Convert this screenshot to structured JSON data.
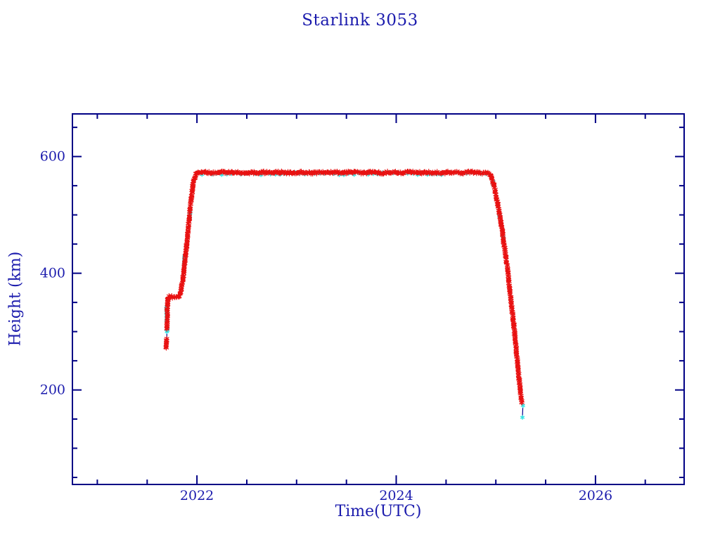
{
  "page": {
    "background": "#ffffff"
  },
  "chart_data": {
    "type": "scatter",
    "title": "Starlink 3053",
    "xlabel": "Time(UTC)",
    "ylabel": "Height (km)",
    "xlim": [
      2020.75,
      2026.89
    ],
    "ylim": [
      38,
      673
    ],
    "x_major_ticks": [
      {
        "value": 2022,
        "label": "2022"
      },
      {
        "value": 2024,
        "label": "2024"
      },
      {
        "value": 2026,
        "label": "2026"
      }
    ],
    "x_minor_step": 0.5,
    "y_major_ticks": [
      {
        "value": 200,
        "label": "200"
      },
      {
        "value": 400,
        "label": "400"
      },
      {
        "value": 600,
        "label": "600"
      }
    ],
    "y_minor_step": 50,
    "grid": false,
    "legend": "none",
    "colors": {
      "axis": "#000085",
      "text": "#1b1bad",
      "line": "#000090",
      "red": "#e81111",
      "cyan": "#35e4e4"
    },
    "series": [
      {
        "name": "height-track-cyan",
        "color": "#35e4e4",
        "marker": "star",
        "size": 2.6,
        "stroke_width": 1.5,
        "segments": [
          {
            "points": [
              [
                2021.698,
                318
              ],
              [
                2021.698,
                343
              ]
            ],
            "step": 1.2,
            "jitter": 0.9
          },
          {
            "points": [
              [
                2021.703,
                300
              ],
              [
                2021.703,
                306
              ]
            ],
            "step": 1.4,
            "jitter": 0.8
          },
          {
            "points": [
              [
                2021.873,
                416
              ],
              [
                2021.879,
                430
              ]
            ],
            "step": 1.3,
            "jitter": 0.9
          },
          {
            "points": [
              [
                2021.925,
                492
              ],
              [
                2021.932,
                504
              ]
            ],
            "step": 1.4,
            "jitter": 0.9
          },
          {
            "points": [
              [
                2022.05,
                570.5
              ],
              [
                2024.9,
                570.5
              ]
            ],
            "step": 7,
            "jitter": 2.0
          },
          {
            "points": [
              [
                2024.972,
                556
              ],
              [
                2024.979,
                550
              ]
            ],
            "step": 1.6,
            "jitter": 0.9
          },
          {
            "points": [
              [
                2025.035,
                500
              ],
              [
                2025.04,
                496
              ]
            ],
            "step": 1.6,
            "jitter": 0.8
          },
          {
            "points": [
              [
                2025.07,
                462
              ],
              [
                2025.075,
                458
              ]
            ],
            "step": 1.6,
            "jitter": 0.8
          },
          {
            "points": [
              [
                2025.272,
                173
              ]
            ],
            "step": 1,
            "jitter": 0
          },
          {
            "points": [
              [
                2025.267,
                153
              ]
            ],
            "step": 1,
            "jitter": 0
          }
        ]
      },
      {
        "name": "height-track-red",
        "color": "#e81111",
        "marker": "asterisk",
        "size": 3.3,
        "stroke_width": 1.15,
        "segments": [
          {
            "points": [
              [
                2021.692,
                271
              ],
              [
                2021.693,
                275
              ],
              [
                2021.695,
                281
              ],
              [
                2021.697,
                288
              ]
            ],
            "step": 1.2,
            "jitter": 1.0
          },
          {
            "points": [
              [
                2021.699,
                303
              ],
              [
                2021.7,
                313
              ],
              [
                2021.701,
                323
              ],
              [
                2021.702,
                333
              ],
              [
                2021.703,
                342
              ],
              [
                2021.705,
                350
              ],
              [
                2021.708,
                356
              ],
              [
                2021.713,
                359
              ],
              [
                2021.72,
                360
              ],
              [
                2021.74,
                360
              ],
              [
                2021.76,
                359
              ],
              [
                2021.78,
                360
              ],
              [
                2021.8,
                360
              ],
              [
                2021.815,
                360
              ],
              [
                2021.825,
                362
              ],
              [
                2021.838,
                370
              ],
              [
                2021.85,
                381
              ],
              [
                2021.863,
                396
              ],
              [
                2021.876,
                414
              ],
              [
                2021.889,
                435
              ],
              [
                2021.902,
                458
              ],
              [
                2021.915,
                481
              ],
              [
                2021.928,
                503
              ],
              [
                2021.94,
                523
              ],
              [
                2021.951,
                540
              ],
              [
                2021.962,
                553
              ],
              [
                2021.973,
                562
              ],
              [
                2021.985,
                568
              ],
              [
                2022.0,
                572
              ],
              [
                2022.05,
                573
              ],
              [
                2022.15,
                572
              ],
              [
                2022.25,
                573
              ],
              [
                2022.35,
                572
              ],
              [
                2022.45,
                573
              ],
              [
                2022.55,
                572
              ],
              [
                2022.65,
                573
              ],
              [
                2022.75,
                572
              ],
              [
                2022.85,
                573
              ],
              [
                2022.95,
                572
              ],
              [
                2023.05,
                573
              ],
              [
                2023.15,
                572
              ],
              [
                2023.25,
                572
              ],
              [
                2023.35,
                573
              ],
              [
                2023.45,
                572
              ],
              [
                2023.55,
                573
              ],
              [
                2023.65,
                572
              ],
              [
                2023.75,
                573
              ],
              [
                2023.85,
                572
              ],
              [
                2023.95,
                573
              ],
              [
                2024.05,
                572
              ],
              [
                2024.15,
                573
              ],
              [
                2024.25,
                572
              ],
              [
                2024.35,
                573
              ],
              [
                2024.45,
                572
              ],
              [
                2024.55,
                573
              ],
              [
                2024.65,
                572
              ],
              [
                2024.75,
                573
              ],
              [
                2024.85,
                572
              ],
              [
                2024.93,
                571
              ],
              [
                2024.951,
                568
              ],
              [
                2024.965,
                560
              ],
              [
                2024.98,
                551
              ],
              [
                2024.995,
                540
              ],
              [
                2025.01,
                527
              ],
              [
                2025.03,
                509
              ],
              [
                2025.05,
                490
              ],
              [
                2025.065,
                471
              ],
              [
                2025.08,
                452
              ],
              [
                2025.095,
                436
              ],
              [
                2025.11,
                417
              ],
              [
                2025.122,
                400
              ],
              [
                2025.133,
                384
              ],
              [
                2025.144,
                366
              ],
              [
                2025.155,
                349
              ],
              [
                2025.167,
                331
              ],
              [
                2025.179,
                313
              ],
              [
                2025.19,
                294
              ],
              [
                2025.202,
                274
              ],
              [
                2025.214,
                253
              ],
              [
                2025.226,
                232
              ],
              [
                2025.238,
                211
              ],
              [
                2025.248,
                196
              ],
              [
                2025.256,
                185
              ],
              [
                2025.262,
                178
              ]
            ],
            "step": 1.35,
            "jitter": 1.6
          }
        ]
      }
    ],
    "connect_line": [
      [
        2021.692,
        271
      ],
      [
        2021.697,
        288
      ],
      [
        2021.699,
        303
      ],
      [
        2021.705,
        350
      ],
      [
        2021.713,
        359
      ],
      [
        2021.8,
        360
      ],
      [
        2021.825,
        362
      ],
      [
        2021.85,
        381
      ],
      [
        2021.889,
        435
      ],
      [
        2021.93,
        506
      ],
      [
        2021.962,
        553
      ],
      [
        2022.0,
        572
      ],
      [
        2024.93,
        572
      ],
      [
        2024.951,
        568
      ],
      [
        2024.98,
        551
      ],
      [
        2025.01,
        527
      ],
      [
        2025.05,
        490
      ],
      [
        2025.08,
        452
      ],
      [
        2025.11,
        417
      ],
      [
        2025.155,
        349
      ],
      [
        2025.19,
        294
      ],
      [
        2025.226,
        232
      ],
      [
        2025.256,
        185
      ],
      [
        2025.262,
        178
      ],
      [
        2025.272,
        173
      ],
      [
        2025.267,
        153
      ]
    ]
  }
}
